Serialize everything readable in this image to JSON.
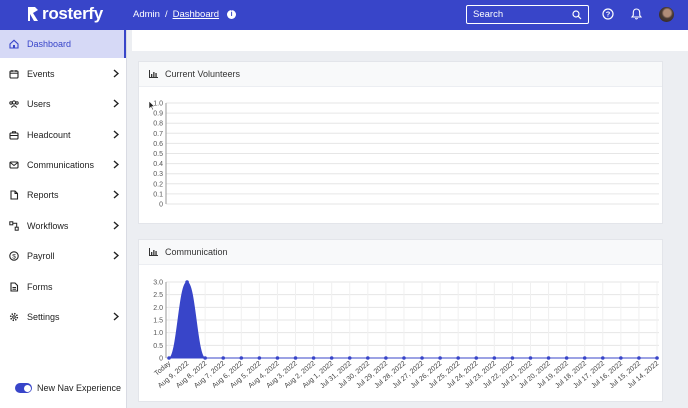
{
  "app": {
    "brand": "rosterfy"
  },
  "header": {
    "breadcrumb": [
      "Admin",
      "Dashboard"
    ],
    "breadcrumb_sep": "/",
    "search_placeholder": "Search",
    "colors": {
      "primary": "#3845c9"
    }
  },
  "sidebar": {
    "items": [
      {
        "label": "Dashboard",
        "icon": "home-icon",
        "active": true,
        "has_children": false
      },
      {
        "label": "Events",
        "icon": "calendar-icon",
        "active": false,
        "has_children": true
      },
      {
        "label": "Users",
        "icon": "users-icon",
        "active": false,
        "has_children": true
      },
      {
        "label": "Headcount",
        "icon": "briefcase-icon",
        "active": false,
        "has_children": true
      },
      {
        "label": "Communications",
        "icon": "mail-icon",
        "active": false,
        "has_children": true
      },
      {
        "label": "Reports",
        "icon": "document-icon",
        "active": false,
        "has_children": true
      },
      {
        "label": "Workflows",
        "icon": "workflow-icon",
        "active": false,
        "has_children": true
      },
      {
        "label": "Payroll",
        "icon": "dollar-icon",
        "active": false,
        "has_children": true
      },
      {
        "label": "Forms",
        "icon": "form-icon",
        "active": false,
        "has_children": false
      },
      {
        "label": "Settings",
        "icon": "gear-icon",
        "active": false,
        "has_children": true
      }
    ],
    "toggle_label": "New Nav Experience",
    "toggle_on": true
  },
  "cards": {
    "volunteers_title": "Current Volunteers",
    "communication_title": "Communication"
  },
  "chart_data": [
    {
      "type": "line",
      "title": "Current Volunteers",
      "ylim": [
        0,
        1.0
      ],
      "yticks": [
        "1.0",
        "0.9",
        "0.8",
        "0.7",
        "0.6",
        "0.5",
        "0.4",
        "0.3",
        "0.2",
        "0.1",
        "0"
      ],
      "series": [],
      "grid": true
    },
    {
      "type": "area",
      "title": "Communication",
      "ylim": [
        0,
        3.0
      ],
      "yticks": [
        "3.0",
        "2.5",
        "2.0",
        "1.5",
        "1.0",
        "0.5",
        "0"
      ],
      "categories": [
        "Today",
        "Aug 9, 2022",
        "Aug 8, 2022",
        "Aug 7, 2022",
        "Aug 6, 2022",
        "Aug 5, 2022",
        "Aug 4, 2022",
        "Aug 3, 2022",
        "Aug 2, 2022",
        "Aug 1, 2022",
        "Jul 31, 2022",
        "Jul 30, 2022",
        "Jul 29, 2022",
        "Jul 28, 2022",
        "Jul 27, 2022",
        "Jul 26, 2022",
        "Jul 25, 2022",
        "Jul 24, 2022",
        "Jul 23, 2022",
        "Jul 22, 2022",
        "Jul 21, 2022",
        "Jul 20, 2022",
        "Jul 19, 2022",
        "Jul 18, 2022",
        "Jul 17, 2022",
        "Jul 16, 2022",
        "Jul 15, 2022",
        "Jul 14, 2022"
      ],
      "series": [
        {
          "values": [
            0,
            3,
            0,
            0,
            0,
            0,
            0,
            0,
            0,
            0,
            0,
            0,
            0,
            0,
            0,
            0,
            0,
            0,
            0,
            0,
            0,
            0,
            0,
            0,
            0,
            0,
            0,
            0
          ]
        }
      ],
      "color": "#3845c9",
      "grid": true
    }
  ]
}
